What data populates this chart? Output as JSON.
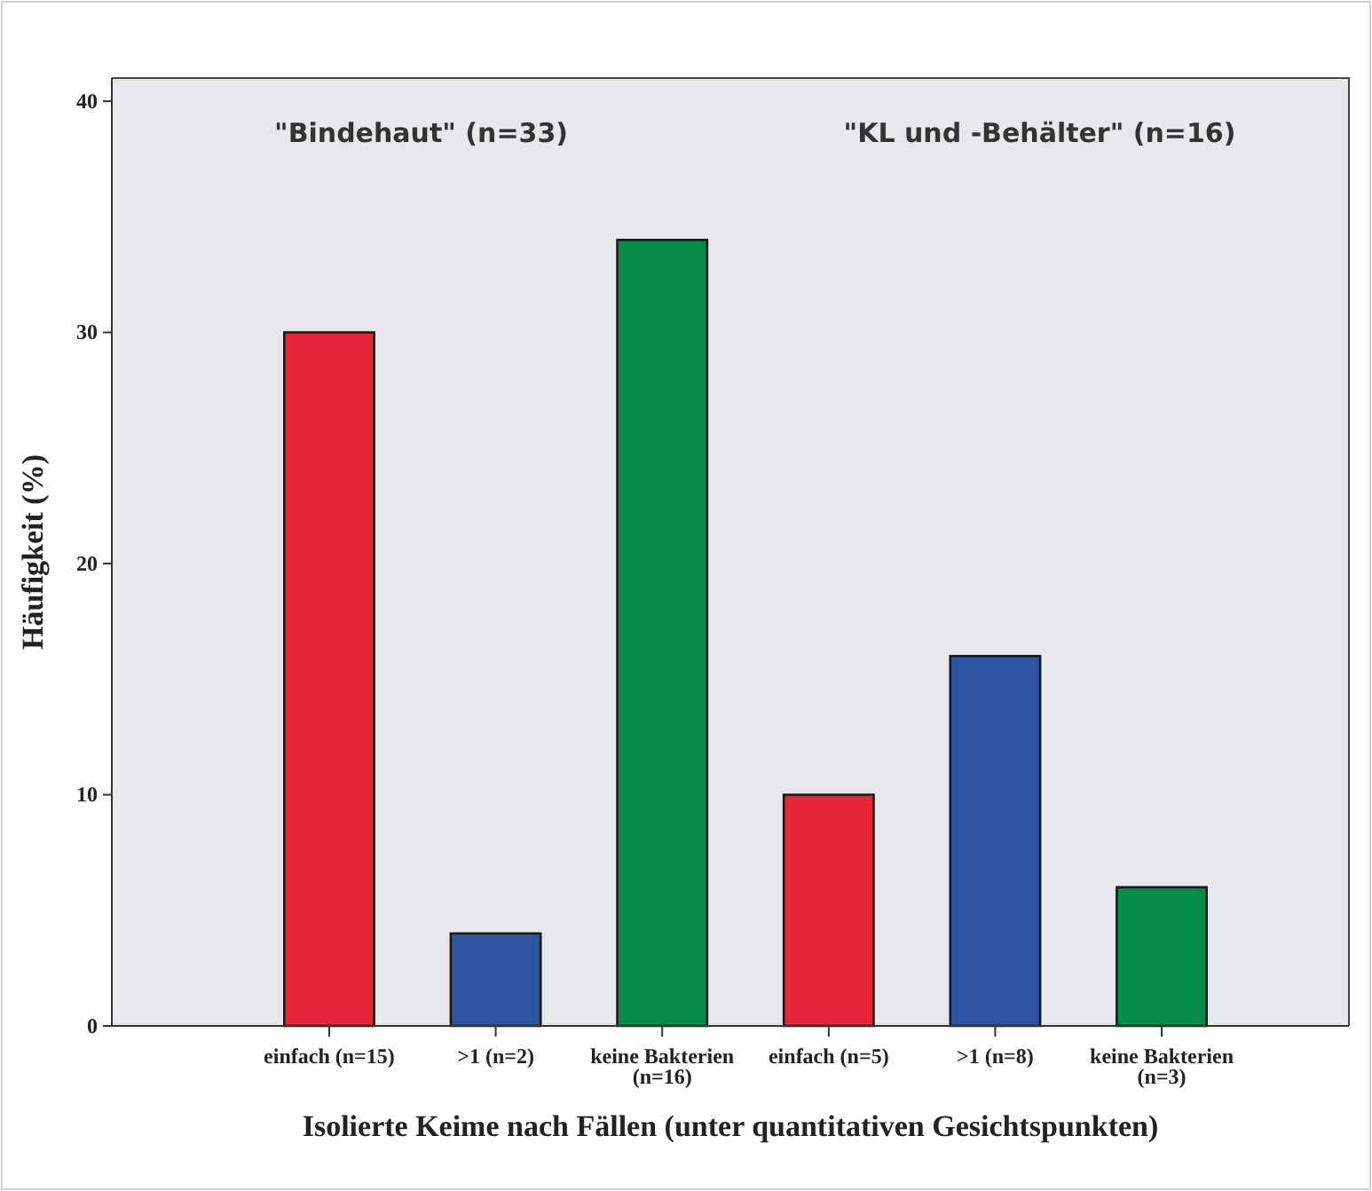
{
  "chart_data": {
    "type": "bar",
    "xlabel": "Isolierte Keime nach Fällen (unter quantitativen Gesichtspunkten)",
    "ylabel": "Häufigkeit (%)",
    "categories": [
      "einfach (n=15)",
      ">1 (n=2)",
      "keine Bakterien (n=16)",
      "einfach (n=5)",
      ">1 (n=8)",
      "keine Bakterien (n=3)"
    ],
    "values": [
      30,
      4,
      34,
      10,
      16,
      6
    ],
    "colors": [
      "#e8263a",
      "#2f54a3",
      "#068c4a",
      "#e8263a",
      "#2f54a3",
      "#068c4a"
    ],
    "ylim": [
      0,
      41
    ],
    "yticks": [
      0,
      10,
      20,
      30,
      40
    ],
    "grid": false,
    "annotations": [
      "\"Bindehaut\" (n=33)",
      "\"KL und -Behälter\" (n=16)"
    ]
  }
}
